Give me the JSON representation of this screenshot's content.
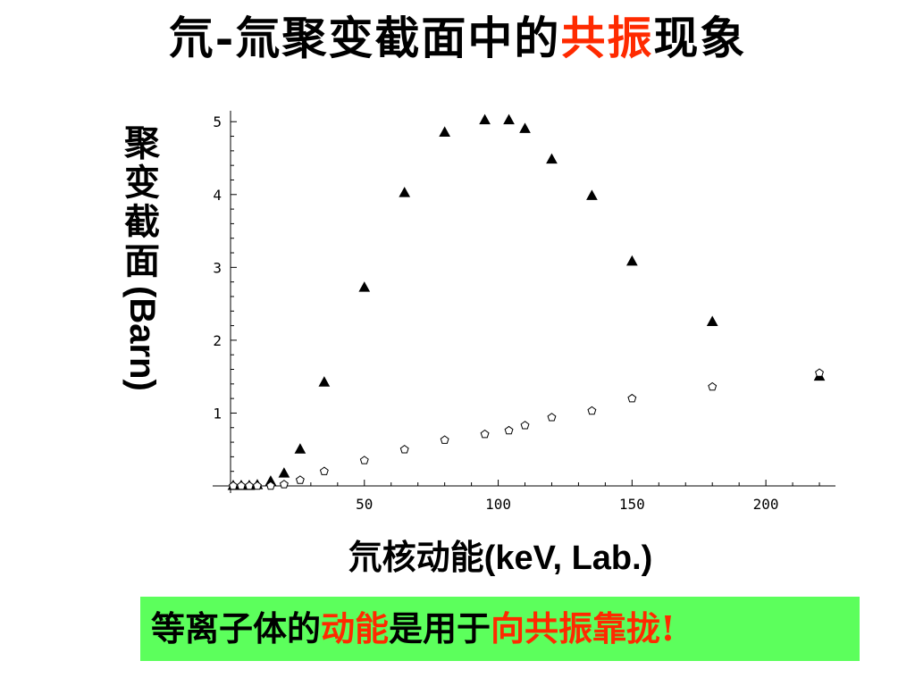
{
  "title": {
    "part1": "氘-氚聚变截面中的",
    "highlight": "共振",
    "part2": "现象"
  },
  "ylabel": {
    "chars": [
      "聚",
      "变",
      "截",
      "面"
    ],
    "latin": "(Barn)"
  },
  "xlabel": {
    "chinese": "氘核动能",
    "latin": "(keV, Lab.)"
  },
  "banner": {
    "part1": "等离子体的",
    "highlight1": "动能",
    "part2": "是用于",
    "highlight2": "向共振靠拢",
    "exclaim": "!"
  },
  "chart_data": {
    "type": "scatter",
    "title": "氘-氚聚变截面中的共振现象",
    "xlabel": "氘核动能(keV, Lab.)",
    "ylabel": "聚变截面(Barn)",
    "xlim": [
      0,
      226
    ],
    "ylim": [
      0,
      5.15
    ],
    "xticks": [
      50,
      100,
      150,
      200
    ],
    "yticks": [
      1,
      2,
      3,
      4,
      5
    ],
    "grid": false,
    "legend": "none",
    "series": [
      {
        "marker": "triangle-filled",
        "color": "#000000",
        "points": [
          [
            1,
            0.0
          ],
          [
            4,
            0.0
          ],
          [
            7,
            0.0
          ],
          [
            10,
            0.01
          ],
          [
            15,
            0.06
          ],
          [
            20,
            0.17
          ],
          [
            26,
            0.5
          ],
          [
            35,
            1.42
          ],
          [
            50,
            2.72
          ],
          [
            65,
            4.02
          ],
          [
            80,
            4.85
          ],
          [
            95,
            5.02
          ],
          [
            104,
            5.02
          ],
          [
            110,
            4.9
          ],
          [
            120,
            4.48
          ],
          [
            135,
            3.98
          ],
          [
            150,
            3.08
          ],
          [
            180,
            2.25
          ],
          [
            220,
            1.5
          ]
        ]
      },
      {
        "marker": "pentagon-open",
        "color": "#000000",
        "points": [
          [
            1,
            0.0
          ],
          [
            4,
            0.0
          ],
          [
            7,
            0.0
          ],
          [
            10,
            0.0
          ],
          [
            15,
            0.0
          ],
          [
            20,
            0.02
          ],
          [
            26,
            0.08
          ],
          [
            35,
            0.2
          ],
          [
            50,
            0.35
          ],
          [
            65,
            0.5
          ],
          [
            80,
            0.63
          ],
          [
            95,
            0.71
          ],
          [
            104,
            0.76
          ],
          [
            110,
            0.83
          ],
          [
            120,
            0.94
          ],
          [
            135,
            1.03
          ],
          [
            150,
            1.2
          ],
          [
            180,
            1.36
          ],
          [
            220,
            1.55
          ]
        ]
      }
    ]
  }
}
